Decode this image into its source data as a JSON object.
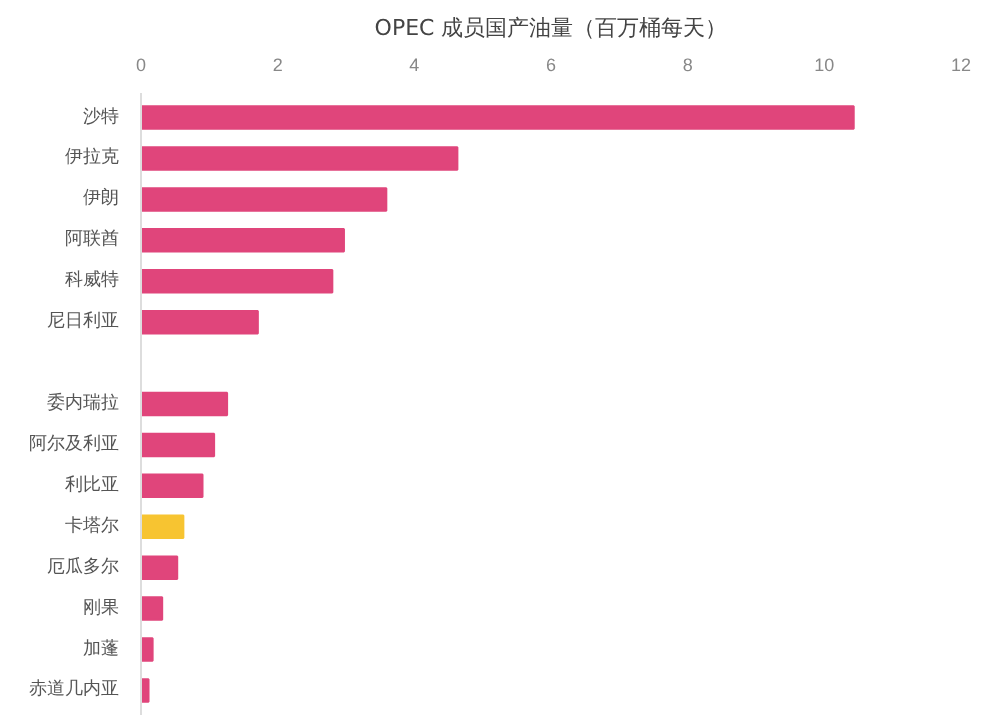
{
  "chart_data": {
    "type": "bar",
    "orientation": "horizontal",
    "title": "OPEC 成员国产油量（百万桶每天）",
    "categories": [
      "沙特",
      "伊拉克",
      "伊朗",
      "阿联酋",
      "科威特",
      "尼日利亚",
      null,
      "委内瑞拉",
      "阿尔及利亚",
      "利比亚",
      "卡塔尔",
      "厄瓜多尔",
      "刚果",
      "加蓬",
      "赤道几内亚"
    ],
    "values": [
      10.43,
      4.63,
      3.59,
      2.97,
      2.8,
      1.71,
      null,
      1.26,
      1.07,
      0.9,
      0.62,
      0.53,
      0.31,
      0.17,
      0.11
    ],
    "colors": [
      "#e0457b",
      "#e0457b",
      "#e0457b",
      "#e0457b",
      "#e0457b",
      "#e0457b",
      "#e0457b",
      "#e0457b",
      "#e0457b",
      "#e0457b",
      "#f7c431",
      "#e0457b",
      "#e0457b",
      "#e0457b",
      "#e0457b"
    ],
    "xlim": [
      0,
      12
    ],
    "xticks": [
      0,
      2,
      4,
      6,
      8,
      10,
      12
    ],
    "grid": false
  }
}
